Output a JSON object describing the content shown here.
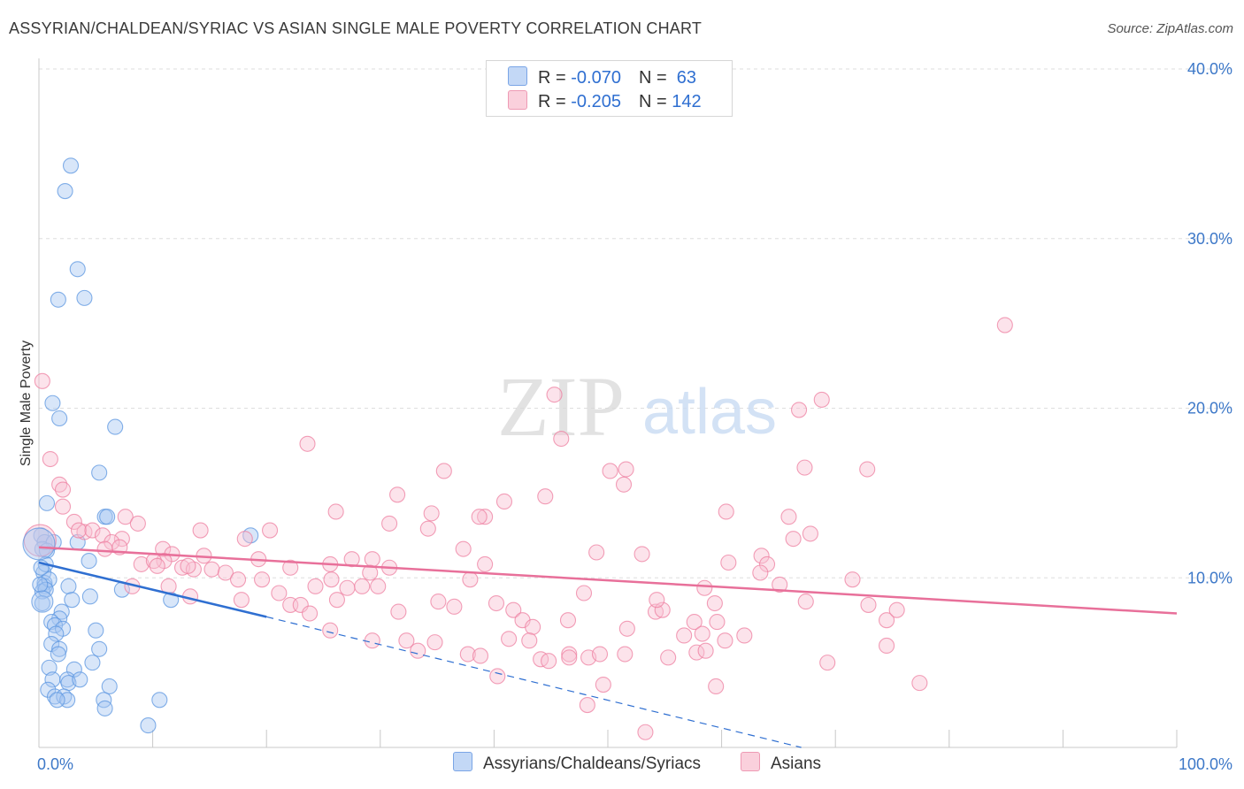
{
  "header": {
    "title": "ASSYRIAN/CHALDEAN/SYRIAC VS ASIAN SINGLE MALE POVERTY CORRELATION CHART",
    "source": "Source: ZipAtlas.com"
  },
  "watermark": {
    "zip": "ZIP",
    "atlas": "atlas"
  },
  "legend": {
    "rows": [
      {
        "r_label": "R = ",
        "r_value": "-0.070",
        "n_label": "N = ",
        "n_value": " 63",
        "color": "#9ec1f0"
      },
      {
        "r_label": "R = ",
        "r_value": "-0.205",
        "n_label": "N = ",
        "n_value": "142",
        "color": "#f5b6c8"
      }
    ]
  },
  "bottom_legend": [
    {
      "label": "Assyrians/Chaldeans/Syriacs",
      "color": "#9ec1f0"
    },
    {
      "label": "Asians",
      "color": "#f5b6c8"
    }
  ],
  "chart_data": {
    "type": "scatter",
    "ylabel": "Single Male Poverty",
    "xlim": [
      0,
      100
    ],
    "ylim": [
      0,
      40
    ],
    "x_ticks": [
      {
        "v": 0,
        "label": "0.0%"
      },
      {
        "v": 100,
        "label": "100.0%"
      }
    ],
    "y_ticks": [
      {
        "v": 10,
        "label": "10.0%"
      },
      {
        "v": 20,
        "label": "20.0%"
      },
      {
        "v": 30,
        "label": "30.0%"
      },
      {
        "v": 40,
        "label": "40.0%"
      }
    ],
    "grid": true,
    "series": [
      {
        "name": "Assyrians/Chaldeans/Syriacs",
        "color": "#5b95e0",
        "fill": "#a9c8f2",
        "trend": {
          "x": [
            0,
            20
          ],
          "y": [
            10.9,
            7.7
          ],
          "color": "#2f6fd1"
        },
        "trend_ext": {
          "x": [
            20,
            67
          ],
          "y": [
            7.7,
            0.0
          ]
        },
        "points": [
          [
            2.8,
            34.3
          ],
          [
            2.3,
            32.8
          ],
          [
            3.4,
            28.2
          ],
          [
            1.7,
            26.4
          ],
          [
            4.0,
            26.5
          ],
          [
            1.2,
            20.3
          ],
          [
            1.8,
            19.4
          ],
          [
            6.7,
            18.9
          ],
          [
            5.3,
            16.2
          ],
          [
            0.7,
            14.4
          ],
          [
            5.8,
            13.6
          ],
          [
            6.0,
            13.6
          ],
          [
            0.2,
            12.5
          ],
          [
            0.5,
            12.1
          ],
          [
            1.3,
            12.1
          ],
          [
            3.4,
            12.1
          ],
          [
            18.6,
            12.5
          ],
          [
            0.3,
            11.7
          ],
          [
            0.7,
            11.6
          ],
          [
            4.4,
            11.0
          ],
          [
            0.4,
            10.3
          ],
          [
            0.6,
            10.8
          ],
          [
            0.5,
            9.7
          ],
          [
            0.5,
            9.5
          ],
          [
            0.3,
            9.2
          ],
          [
            0.9,
            9.9
          ],
          [
            0.6,
            9.3
          ],
          [
            2.6,
            9.5
          ],
          [
            7.3,
            9.3
          ],
          [
            4.5,
            8.9
          ],
          [
            2.9,
            8.7
          ],
          [
            11.6,
            8.7
          ],
          [
            0.3,
            8.5
          ],
          [
            2.0,
            8.0
          ],
          [
            1.8,
            7.6
          ],
          [
            1.1,
            7.4
          ],
          [
            1.4,
            7.2
          ],
          [
            2.1,
            7.0
          ],
          [
            1.5,
            6.7
          ],
          [
            5.0,
            6.9
          ],
          [
            1.1,
            6.1
          ],
          [
            1.8,
            5.8
          ],
          [
            5.3,
            5.8
          ],
          [
            1.7,
            5.5
          ],
          [
            4.7,
            5.0
          ],
          [
            0.9,
            4.7
          ],
          [
            3.1,
            4.6
          ],
          [
            1.2,
            4.0
          ],
          [
            2.5,
            4.0
          ],
          [
            2.6,
            3.8
          ],
          [
            3.6,
            4.0
          ],
          [
            6.2,
            3.6
          ],
          [
            0.8,
            3.4
          ],
          [
            1.4,
            3.0
          ],
          [
            2.2,
            3.0
          ],
          [
            2.5,
            2.8
          ],
          [
            1.6,
            2.8
          ],
          [
            5.7,
            2.8
          ],
          [
            10.6,
            2.8
          ],
          [
            5.8,
            2.3
          ],
          [
            9.6,
            1.3
          ],
          [
            0.1,
            9.6
          ],
          [
            0.2,
            10.6
          ]
        ]
      },
      {
        "name": "Asians",
        "color": "#ee7fa0",
        "fill": "#f8c2d2",
        "trend": {
          "x": [
            0,
            100
          ],
          "y": [
            11.8,
            7.9
          ],
          "color": "#e8709a"
        },
        "points": [
          [
            84.9,
            24.9
          ],
          [
            0.3,
            21.6
          ],
          [
            45.3,
            20.8
          ],
          [
            68.8,
            20.5
          ],
          [
            66.8,
            19.9
          ],
          [
            45.9,
            18.2
          ],
          [
            23.6,
            17.9
          ],
          [
            1.0,
            17.0
          ],
          [
            50.2,
            16.3
          ],
          [
            35.6,
            16.3
          ],
          [
            67.3,
            16.5
          ],
          [
            72.8,
            16.4
          ],
          [
            51.6,
            16.4
          ],
          [
            1.8,
            15.5
          ],
          [
            51.4,
            15.5
          ],
          [
            2.1,
            15.2
          ],
          [
            31.5,
            14.9
          ],
          [
            44.5,
            14.8
          ],
          [
            2.1,
            14.2
          ],
          [
            40.9,
            14.5
          ],
          [
            26.1,
            13.9
          ],
          [
            34.5,
            13.8
          ],
          [
            60.4,
            13.9
          ],
          [
            7.6,
            13.6
          ],
          [
            39.2,
            13.6
          ],
          [
            38.7,
            13.6
          ],
          [
            65.9,
            13.6
          ],
          [
            3.1,
            13.3
          ],
          [
            8.7,
            13.2
          ],
          [
            30.8,
            13.2
          ],
          [
            34.2,
            12.9
          ],
          [
            14.2,
            12.8
          ],
          [
            20.3,
            12.8
          ],
          [
            67.8,
            12.6
          ],
          [
            4.0,
            12.7
          ],
          [
            3.5,
            12.8
          ],
          [
            4.7,
            12.8
          ],
          [
            5.6,
            12.5
          ],
          [
            7.3,
            12.3
          ],
          [
            6.4,
            12.1
          ],
          [
            18.1,
            12.3
          ],
          [
            66.3,
            12.3
          ],
          [
            5.8,
            11.7
          ],
          [
            7.1,
            11.8
          ],
          [
            10.9,
            11.7
          ],
          [
            11.7,
            11.4
          ],
          [
            14.5,
            11.3
          ],
          [
            37.3,
            11.7
          ],
          [
            49.0,
            11.5
          ],
          [
            53.0,
            11.4
          ],
          [
            63.5,
            11.3
          ],
          [
            11.0,
            11.0
          ],
          [
            19.3,
            11.1
          ],
          [
            27.5,
            11.1
          ],
          [
            29.3,
            11.1
          ],
          [
            60.6,
            10.9
          ],
          [
            9.0,
            10.8
          ],
          [
            10.1,
            11.0
          ],
          [
            12.6,
            10.6
          ],
          [
            13.6,
            10.5
          ],
          [
            15.2,
            10.5
          ],
          [
            16.4,
            10.3
          ],
          [
            25.6,
            10.8
          ],
          [
            30.8,
            10.6
          ],
          [
            39.2,
            10.8
          ],
          [
            64.0,
            10.8
          ],
          [
            13.1,
            10.7
          ],
          [
            22.1,
            10.6
          ],
          [
            10.4,
            10.7
          ],
          [
            17.5,
            9.9
          ],
          [
            19.6,
            9.9
          ],
          [
            25.7,
            9.9
          ],
          [
            29.1,
            10.3
          ],
          [
            37.9,
            9.9
          ],
          [
            63.4,
            10.3
          ],
          [
            71.5,
            9.9
          ],
          [
            8.2,
            9.5
          ],
          [
            11.4,
            9.5
          ],
          [
            24.3,
            9.5
          ],
          [
            27.1,
            9.4
          ],
          [
            28.4,
            9.5
          ],
          [
            29.8,
            9.5
          ],
          [
            58.5,
            9.4
          ],
          [
            65.1,
            9.6
          ],
          [
            13.3,
            8.9
          ],
          [
            21.1,
            9.1
          ],
          [
            35.1,
            8.6
          ],
          [
            40.2,
            8.5
          ],
          [
            47.9,
            9.1
          ],
          [
            59.4,
            8.5
          ],
          [
            67.4,
            8.6
          ],
          [
            72.9,
            8.4
          ],
          [
            22.1,
            8.4
          ],
          [
            23.0,
            8.4
          ],
          [
            26.2,
            8.7
          ],
          [
            36.5,
            8.3
          ],
          [
            41.7,
            8.1
          ],
          [
            54.2,
            8.0
          ],
          [
            54.8,
            8.1
          ],
          [
            57.6,
            7.4
          ],
          [
            23.8,
            7.9
          ],
          [
            31.6,
            8.0
          ],
          [
            42.5,
            7.5
          ],
          [
            46.5,
            7.5
          ],
          [
            74.5,
            7.5
          ],
          [
            51.7,
            7.0
          ],
          [
            54.3,
            8.7
          ],
          [
            59.6,
            7.4
          ],
          [
            75.4,
            8.1
          ],
          [
            43.4,
            7.1
          ],
          [
            56.7,
            6.6
          ],
          [
            58.3,
            6.7
          ],
          [
            60.3,
            6.3
          ],
          [
            62.0,
            6.6
          ],
          [
            29.3,
            6.3
          ],
          [
            32.3,
            6.3
          ],
          [
            34.8,
            6.2
          ],
          [
            41.3,
            6.4
          ],
          [
            43.1,
            6.3
          ],
          [
            74.5,
            6.0
          ],
          [
            51.5,
            5.5
          ],
          [
            57.8,
            5.6
          ],
          [
            58.6,
            5.7
          ],
          [
            46.6,
            5.5
          ],
          [
            48.3,
            5.3
          ],
          [
            44.1,
            5.2
          ],
          [
            44.8,
            5.1
          ],
          [
            46.6,
            5.3
          ],
          [
            49.3,
            5.5
          ],
          [
            33.3,
            5.7
          ],
          [
            37.7,
            5.5
          ],
          [
            38.8,
            5.4
          ],
          [
            55.3,
            5.3
          ],
          [
            69.3,
            5.0
          ],
          [
            40.3,
            4.2
          ],
          [
            49.6,
            3.7
          ],
          [
            59.5,
            3.6
          ],
          [
            77.4,
            3.8
          ],
          [
            48.2,
            2.5
          ],
          [
            53.3,
            0.9
          ],
          [
            25.6,
            6.9
          ],
          [
            17.8,
            8.7
          ]
        ]
      }
    ],
    "bubbles": [
      {
        "series": 1,
        "x": 0.1,
        "y": 12.2,
        "size": "large"
      },
      {
        "series": 0,
        "x": 0.0,
        "y": 12.0,
        "size": "large"
      },
      {
        "series": 0,
        "x": 0.3,
        "y": 8.6,
        "size": "medium"
      }
    ]
  }
}
